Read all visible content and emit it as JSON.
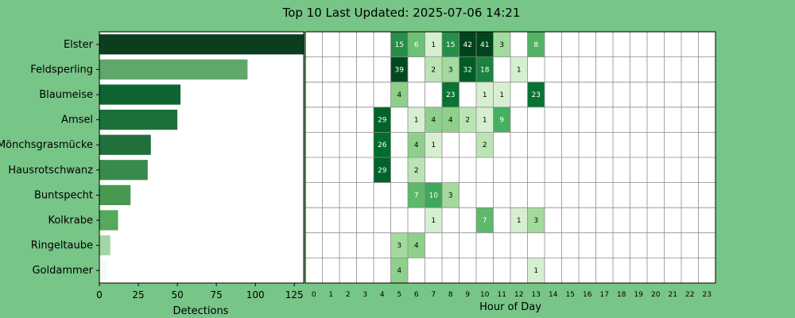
{
  "title": "Top 10 Last Updated: 2025-07-06 14:21",
  "chart_data": [
    {
      "type": "bar",
      "orientation": "horizontal",
      "categories": [
        "Elster",
        "Feldsperling",
        "Blaumeise",
        "Amsel",
        "Mönchsgrasmücke",
        "Hausrotschwanz",
        "Buntspecht",
        "Kolkrabe",
        "Ringeltaube",
        "Goldammer"
      ],
      "values": [
        131,
        95,
        52,
        50,
        33,
        31,
        20,
        12,
        7,
        5
      ],
      "xlabel": "Detections",
      "xlim": [
        0,
        131
      ],
      "xticks": [
        0,
        25,
        50,
        75,
        100,
        125
      ],
      "colors": [
        "#0b3e1f",
        "#5fa76b",
        "#0e6432",
        "#1a7139",
        "#216f3a",
        "#398a4d",
        "#47994f",
        "#56a85f",
        "#a6d5a5",
        "#f4fbf2"
      ]
    },
    {
      "type": "heatmap",
      "xlabel": "Hour of Day",
      "hours": [
        0,
        1,
        2,
        3,
        4,
        5,
        6,
        7,
        8,
        9,
        10,
        11,
        12,
        13,
        14,
        15,
        16,
        17,
        18,
        19,
        20,
        21,
        22,
        23
      ],
      "current_hour": 14,
      "current_hour_color": "#ffff00",
      "rows": [
        "Elster",
        "Feldsperling",
        "Blaumeise",
        "Amsel",
        "Mönchsgrasmücke",
        "Hausrotschwanz",
        "Buntspecht",
        "Kolkrabe",
        "Ringeltaube",
        "Goldammer"
      ],
      "cells": [
        [
          [
            5,
            15
          ],
          [
            6,
            6
          ],
          [
            7,
            1
          ],
          [
            8,
            15
          ],
          [
            9,
            42
          ],
          [
            10,
            41
          ],
          [
            11,
            3
          ],
          [
            13,
            8
          ]
        ],
        [
          [
            5,
            39
          ],
          [
            7,
            2
          ],
          [
            8,
            3
          ],
          [
            9,
            32
          ],
          [
            10,
            18
          ],
          [
            12,
            1
          ]
        ],
        [
          [
            5,
            4
          ],
          [
            8,
            23
          ],
          [
            10,
            1
          ],
          [
            11,
            1
          ],
          [
            13,
            23
          ]
        ],
        [
          [
            4,
            29
          ],
          [
            6,
            1
          ],
          [
            7,
            4
          ],
          [
            8,
            4
          ],
          [
            9,
            2
          ],
          [
            10,
            1
          ],
          [
            11,
            9
          ]
        ],
        [
          [
            4,
            26
          ],
          [
            6,
            4
          ],
          [
            7,
            1
          ],
          [
            10,
            2
          ]
        ],
        [
          [
            4,
            29
          ],
          [
            6,
            2
          ]
        ],
        [
          [
            6,
            7
          ],
          [
            7,
            10
          ],
          [
            8,
            3
          ]
        ],
        [
          [
            7,
            1
          ],
          [
            10,
            7
          ],
          [
            12,
            1
          ],
          [
            13,
            3
          ]
        ],
        [
          [
            5,
            3
          ],
          [
            6,
            4
          ]
        ],
        [
          [
            5,
            4
          ],
          [
            13,
            1
          ]
        ]
      ]
    }
  ]
}
